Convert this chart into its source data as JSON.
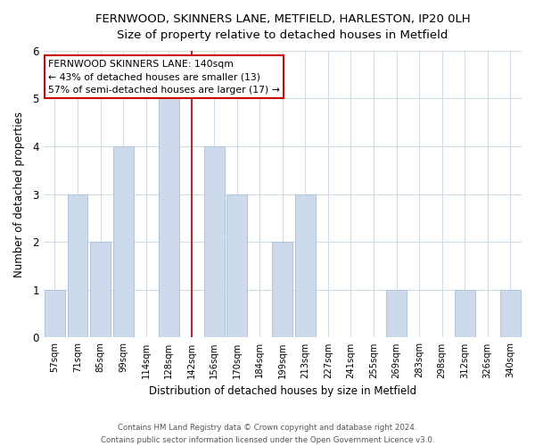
{
  "title": "FERNWOOD, SKINNERS LANE, METFIELD, HARLESTON, IP20 0LH",
  "subtitle": "Size of property relative to detached houses in Metfield",
  "xlabel": "Distribution of detached houses by size in Metfield",
  "ylabel": "Number of detached properties",
  "categories": [
    "57sqm",
    "71sqm",
    "85sqm",
    "99sqm",
    "114sqm",
    "128sqm",
    "142sqm",
    "156sqm",
    "170sqm",
    "184sqm",
    "199sqm",
    "213sqm",
    "227sqm",
    "241sqm",
    "255sqm",
    "269sqm",
    "283sqm",
    "298sqm",
    "312sqm",
    "326sqm",
    "340sqm"
  ],
  "values": [
    1,
    3,
    2,
    4,
    0,
    5,
    0,
    4,
    3,
    0,
    2,
    3,
    0,
    0,
    0,
    1,
    0,
    0,
    1,
    0,
    1
  ],
  "bar_color": "#ccdaeb",
  "bar_edge_color": "#aec4dc",
  "highlight_index": 6,
  "highlight_line_color": "#aa0000",
  "ylim": [
    0,
    6
  ],
  "yticks": [
    0,
    1,
    2,
    3,
    4,
    5,
    6
  ],
  "annotation_title": "FERNWOOD SKINNERS LANE: 140sqm",
  "annotation_line1": "← 43% of detached houses are smaller (13)",
  "annotation_line2": "57% of semi-detached houses are larger (17) →",
  "annotation_box_color": "#ffffff",
  "annotation_box_edge": "#cc0000",
  "footer_line1": "Contains HM Land Registry data © Crown copyright and database right 2024.",
  "footer_line2": "Contains public sector information licensed under the Open Government Licence v3.0.",
  "bg_color": "#ffffff",
  "grid_color": "#d0dce8"
}
